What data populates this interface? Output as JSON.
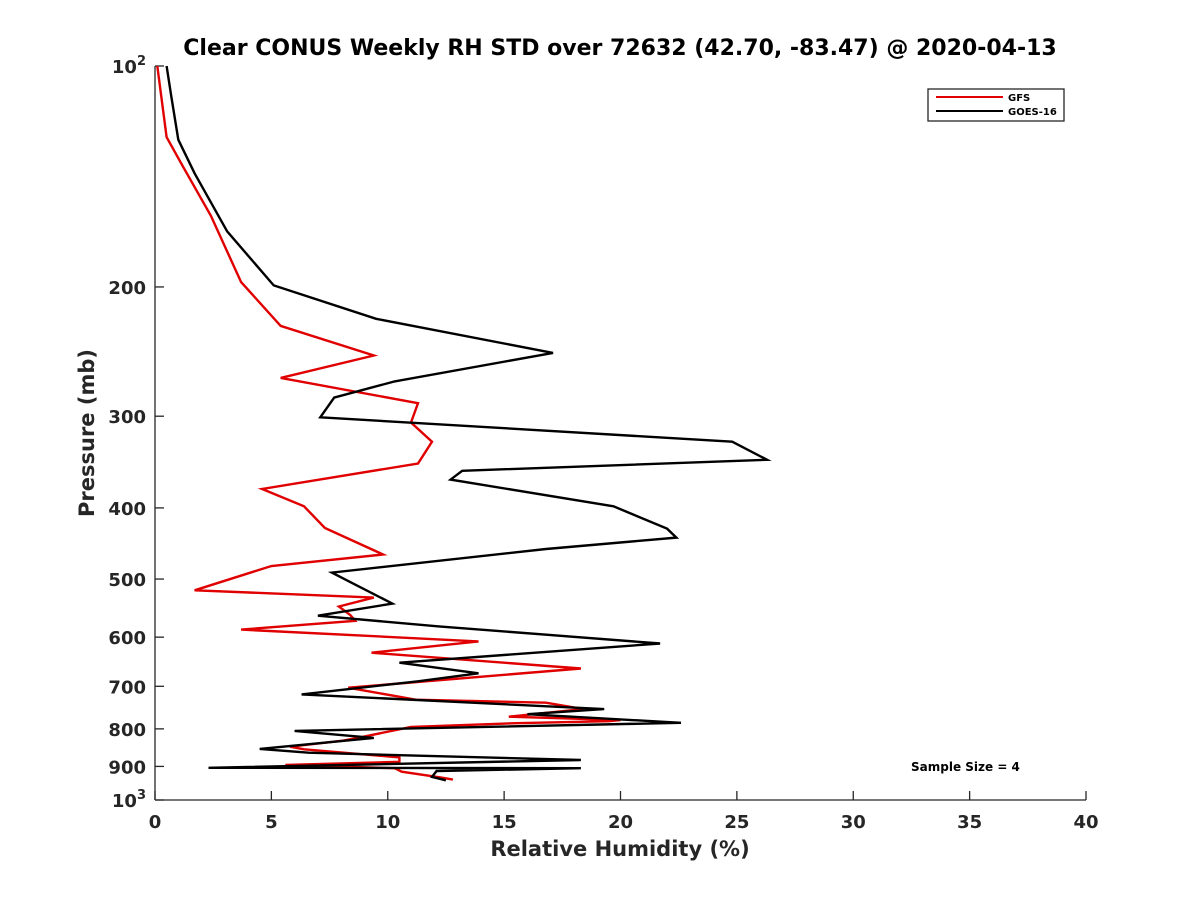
{
  "chart_data": {
    "type": "line",
    "title": "Clear CONUS Weekly RH STD over 72632 (42.70, -83.47) @ 2020-04-13",
    "xlabel": "Relative Humidity (%)",
    "ylabel": "Pressure (mb)",
    "xlim": [
      0,
      40
    ],
    "ylim": [
      100,
      1000
    ],
    "y_scale": "log",
    "y_reversed": true,
    "grid": false,
    "legend_position": "top-right",
    "x_ticks": [
      "0",
      "5",
      "10",
      "15",
      "20",
      "25",
      "30",
      "35",
      "40"
    ],
    "y_ticks": [
      {
        "value": 100,
        "base": "10",
        "exp": "2"
      },
      {
        "value": 200,
        "base": "200",
        "exp": ""
      },
      {
        "value": 300,
        "base": "300",
        "exp": ""
      },
      {
        "value": 400,
        "base": "400",
        "exp": ""
      },
      {
        "value": 500,
        "base": "500",
        "exp": ""
      },
      {
        "value": 600,
        "base": "600",
        "exp": ""
      },
      {
        "value": 700,
        "base": "700",
        "exp": ""
      },
      {
        "value": 800,
        "base": "800",
        "exp": ""
      },
      {
        "value": 900,
        "base": "900",
        "exp": ""
      },
      {
        "value": 1000,
        "base": "10",
        "exp": "3"
      }
    ],
    "annotation": "Sample Size = 4",
    "series": [
      {
        "name": "GFS",
        "color": "#e00000",
        "points": [
          [
            0.1,
            100
          ],
          [
            0.5,
            125
          ],
          [
            1.2,
            137
          ],
          [
            2.4,
            160
          ],
          [
            3.7,
            197
          ],
          [
            5.4,
            226
          ],
          [
            9.4,
            248
          ],
          [
            5.4,
            266
          ],
          [
            11.3,
            288
          ],
          [
            11.0,
            306
          ],
          [
            11.9,
            325
          ],
          [
            11.3,
            348
          ],
          [
            4.6,
            377
          ],
          [
            6.4,
            398
          ],
          [
            7.3,
            426
          ],
          [
            9.8,
            463
          ],
          [
            5.0,
            480
          ],
          [
            1.7,
            518
          ],
          [
            9.4,
            530
          ],
          [
            7.9,
            545
          ],
          [
            8.4,
            560
          ],
          [
            8.6,
            570
          ],
          [
            3.7,
            586
          ],
          [
            13.9,
            608
          ],
          [
            9.3,
            630
          ],
          [
            18.3,
            662
          ],
          [
            8.3,
            703
          ],
          [
            11.2,
            730
          ],
          [
            16.8,
            737
          ],
          [
            18.4,
            752
          ],
          [
            15.2,
            770
          ],
          [
            20.0,
            778
          ],
          [
            19.5,
            781
          ],
          [
            15.5,
            786
          ],
          [
            11.0,
            795
          ],
          [
            8.7,
            823
          ],
          [
            8.1,
            830
          ],
          [
            5.8,
            846
          ],
          [
            6.4,
            853
          ],
          [
            10.5,
            875
          ],
          [
            10.5,
            887
          ],
          [
            5.6,
            896
          ],
          [
            10.3,
            905
          ],
          [
            10.6,
            915
          ],
          [
            12.3,
            932
          ],
          [
            12.8,
            938
          ]
        ]
      },
      {
        "name": "GOES-16",
        "color": "#000000",
        "points": [
          [
            0.5,
            100
          ],
          [
            0.7,
            110
          ],
          [
            1.0,
            126
          ],
          [
            1.7,
            140
          ],
          [
            3.1,
            168
          ],
          [
            5.1,
            199
          ],
          [
            9.5,
            221
          ],
          [
            17.1,
            246
          ],
          [
            10.3,
            269
          ],
          [
            7.7,
            283
          ],
          [
            7.1,
            301
          ],
          [
            24.8,
            325
          ],
          [
            26.3,
            344
          ],
          [
            13.2,
            356
          ],
          [
            12.7,
            366
          ],
          [
            19.7,
            398
          ],
          [
            22.0,
            427
          ],
          [
            22.4,
            439
          ],
          [
            16.8,
            455
          ],
          [
            7.6,
            490
          ],
          [
            8.4,
            505
          ],
          [
            10.2,
            540
          ],
          [
            7.0,
            561
          ],
          [
            12.2,
            580
          ],
          [
            21.7,
            612
          ],
          [
            10.5,
            650
          ],
          [
            13.9,
            672
          ],
          [
            11.3,
            689
          ],
          [
            6.3,
            718
          ],
          [
            19.3,
            752
          ],
          [
            16.0,
            764
          ],
          [
            22.6,
            785
          ],
          [
            6.0,
            805
          ],
          [
            9.4,
            823
          ],
          [
            4.5,
            852
          ],
          [
            6.6,
            862
          ],
          [
            18.3,
            882
          ],
          [
            2.3,
            904
          ],
          [
            18.3,
            905
          ],
          [
            12.1,
            913
          ],
          [
            11.9,
            930
          ],
          [
            12.5,
            940
          ]
        ]
      }
    ]
  }
}
